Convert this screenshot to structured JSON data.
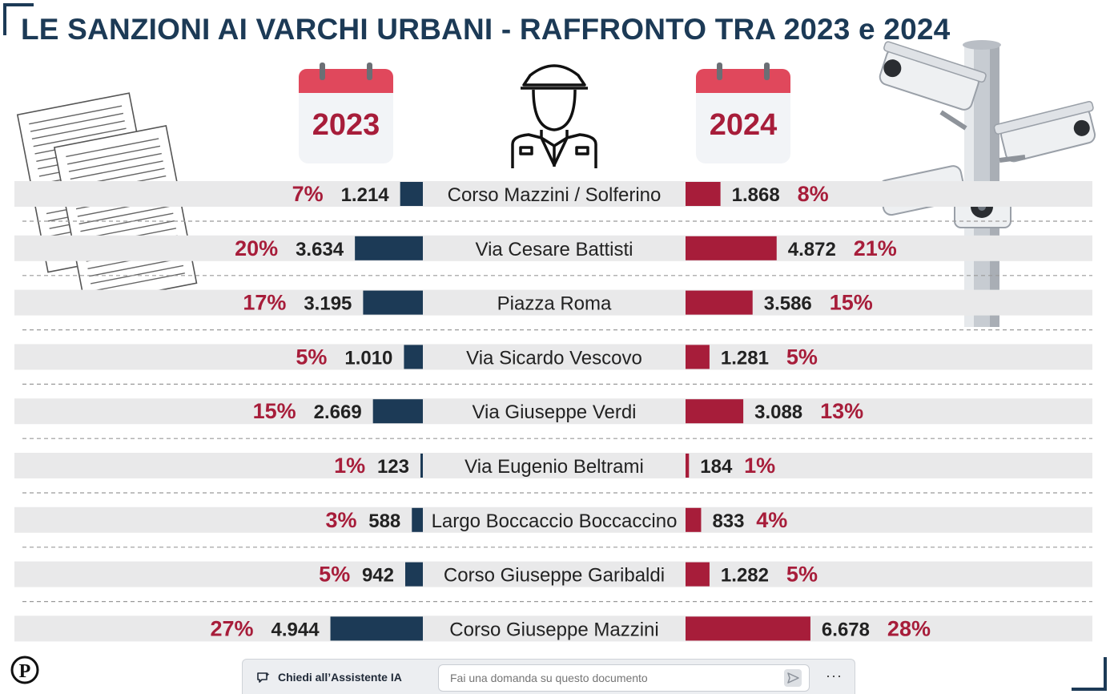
{
  "title": "LE  SANZIONI AI VARCHI URBANI - RAFFRONTO TRA 2023 e 2024",
  "colors": {
    "navy": "#1c3a56",
    "crimson": "#a71d3a",
    "band": "#e9e9ea",
    "text": "#222222"
  },
  "chart_data": {
    "type": "bar",
    "layout": "butterfly",
    "title": "LE  SANZIONI AI VARCHI URBANI - RAFFRONTO TRA 2023 e 2024",
    "categories": [
      "Corso Mazzini / Solferino",
      "Via Cesare Battisti",
      "Piazza Roma",
      "Via Sicardo Vescovo",
      "Via Giuseppe Verdi",
      "Via Eugenio Beltrami",
      "Largo Boccaccio Boccaccino",
      "Corso Giuseppe Garibaldi",
      "Corso Giuseppe Mazzini"
    ],
    "series": [
      {
        "name": "2023",
        "color": "#1c3a56",
        "values": [
          1214,
          3634,
          3195,
          1010,
          2669,
          123,
          588,
          942,
          4944
        ],
        "value_labels": [
          "1.214",
          "3.634",
          "3.195",
          "1.010",
          "2.669",
          "123",
          "588",
          "942",
          "4.944"
        ],
        "percent_labels": [
          "7%",
          "20%",
          "17%",
          "5%",
          "15%",
          "1%",
          "3%",
          "5%",
          "27%"
        ]
      },
      {
        "name": "2024",
        "color": "#a71d3a",
        "values": [
          1868,
          4872,
          3586,
          1281,
          3088,
          184,
          833,
          1282,
          6678
        ],
        "value_labels": [
          "1.868",
          "4.872",
          "3.586",
          "1.281",
          "3.088",
          "184",
          "833",
          "1.282",
          "6.678"
        ],
        "percent_labels": [
          "8%",
          "21%",
          "15%",
          "5%",
          "13%",
          "1%",
          "4%",
          "5%",
          "28%"
        ]
      }
    ],
    "legend": "calendar icons above each side",
    "grid": false
  },
  "ai_bar": {
    "label": "Chiedi all’Assistente IA",
    "placeholder": "Fai una domanda su questo documento",
    "more": "···"
  },
  "icons": {
    "publisher": "P-logo",
    "documents": "documents-icon",
    "officer": "police-officer-icon",
    "cameras": "security-cameras-icon",
    "calendar": "calendar-icon"
  }
}
